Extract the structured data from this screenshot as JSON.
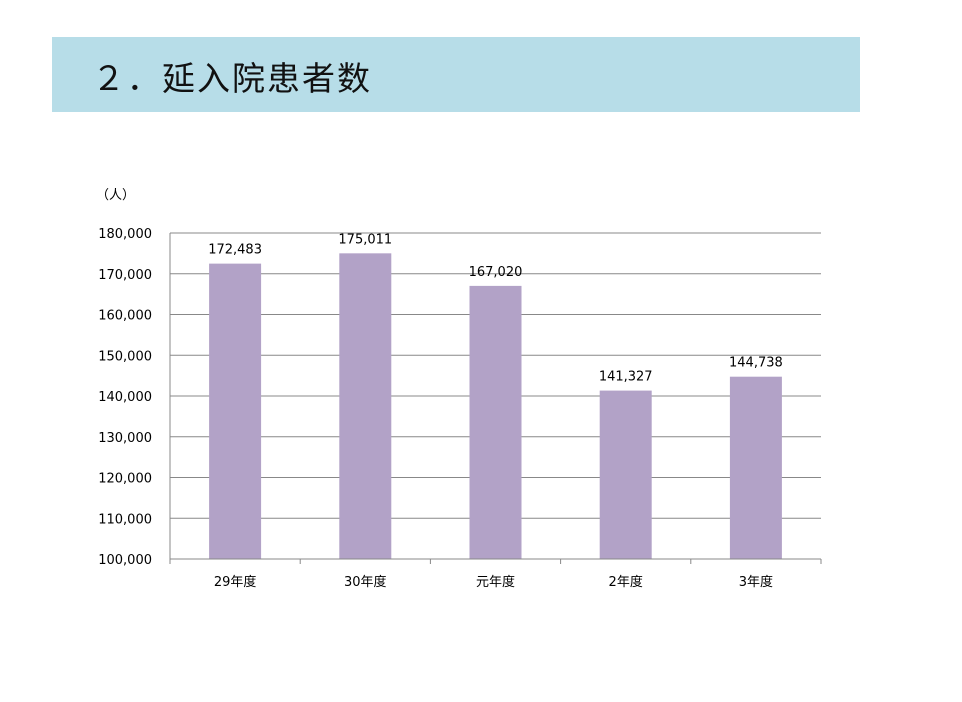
{
  "slide": {
    "title": "２．延入院患者数",
    "unit_label": "（人）"
  },
  "colors": {
    "title_band": "#b7dde8",
    "bar": "#b2a2c7",
    "gridline": "#888888",
    "axis": "#888888"
  },
  "chart_data": {
    "type": "bar",
    "title": "",
    "xlabel": "",
    "ylabel": "（人）",
    "categories": [
      "29年度",
      "30年度",
      "元年度",
      "2年度",
      "3年度"
    ],
    "values": [
      172483,
      175011,
      167020,
      141327,
      144738
    ],
    "value_labels": [
      "172,483",
      "175,011",
      "167,020",
      "141,327",
      "144,738"
    ],
    "ylim": [
      100000,
      180000
    ],
    "yticks": [
      100000,
      110000,
      120000,
      130000,
      140000,
      150000,
      160000,
      170000,
      180000
    ],
    "ytick_labels": [
      "100,000",
      "110,000",
      "120,000",
      "130,000",
      "140,000",
      "150,000",
      "160,000",
      "170,000",
      "180,000"
    ],
    "grid": true,
    "legend": "none"
  }
}
